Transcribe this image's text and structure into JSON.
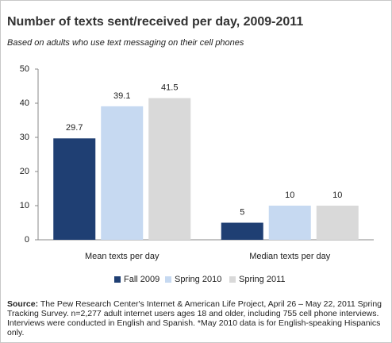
{
  "chart_data": {
    "type": "bar",
    "title": "Number of texts sent/received per day, 2009-2011",
    "subtitle": "Based on adults who use text messaging on their cell phones",
    "categories": [
      "Mean texts per day",
      "Median texts per day"
    ],
    "series": [
      {
        "name": "Fall 2009",
        "color": "#1f3f73",
        "values": [
          29.7,
          5
        ]
      },
      {
        "name": "Spring 2010",
        "color": "#c6d9f1",
        "values": [
          39.1,
          10
        ]
      },
      {
        "name": "Spring 2011",
        "color": "#d9d9d9",
        "values": [
          41.5,
          10
        ]
      }
    ],
    "ylim": [
      0,
      50
    ],
    "yticks": [
      0,
      10,
      20,
      30,
      40,
      50
    ],
    "grid": false,
    "source_label": "Source:",
    "source": "The Pew Research Center's Internet & American Life Project, April 26 – May 22, 2011 Spring Tracking Survey. n=2,277 adult internet users ages 18 and older, including 755 cell phone interviews. Interviews were conducted in English and Spanish. *May 2010 data is for English-speaking Hispanics only."
  }
}
